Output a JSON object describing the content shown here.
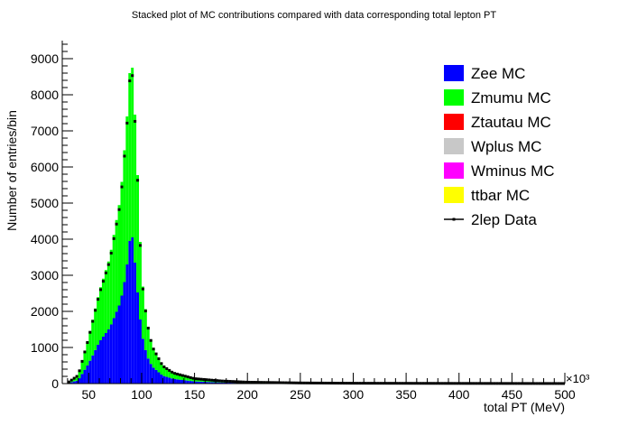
{
  "chart_data": {
    "type": "bar",
    "stacked": true,
    "title": "Stacked plot of MC contributions compared with data corresponding total lepton PT",
    "xlabel": "total PT (MeV)",
    "ylabel": "Number of entries/bin",
    "x_exponent_label": "×10³",
    "xlim": [
      25,
      500
    ],
    "ylim": [
      0,
      9500
    ],
    "bin_width": 2.5,
    "x_ticks": [
      50,
      100,
      150,
      200,
      250,
      300,
      350,
      400,
      450,
      500
    ],
    "y_ticks": [
      0,
      1000,
      2000,
      3000,
      4000,
      5000,
      6000,
      7000,
      8000,
      9000
    ],
    "legend_position": "top-right",
    "series": [
      {
        "name": "Zee MC",
        "color": "#0000ff",
        "style": "fill"
      },
      {
        "name": "Zmumu MC",
        "color": "#00ff00",
        "style": "fill"
      },
      {
        "name": "Ztautau MC",
        "color": "#ff0000",
        "style": "fill"
      },
      {
        "name": "Wplus MC",
        "color": "#c8c8c8",
        "style": "fill"
      },
      {
        "name": "Wminus MC",
        "color": "#ff00ff",
        "style": "fill"
      },
      {
        "name": "ttbar MC",
        "color": "#ffff00",
        "style": "fill"
      },
      {
        "name": "2lep Data",
        "color": "#000000",
        "style": "marker"
      }
    ],
    "key_points": [
      {
        "x": 30,
        "zee": 10,
        "total": 20
      },
      {
        "x": 40,
        "zee": 90,
        "total": 230
      },
      {
        "x": 50,
        "zee": 560,
        "total": 1300
      },
      {
        "x": 60,
        "zee": 1150,
        "total": 2550
      },
      {
        "x": 70,
        "zee": 1550,
        "total": 3500
      },
      {
        "x": 80,
        "zee": 2250,
        "total": 5150
      },
      {
        "x": 85,
        "zee": 3000,
        "total": 6900
      },
      {
        "x": 87.5,
        "zee": 3600,
        "total": 7900
      },
      {
        "x": 90,
        "zee": 4300,
        "total": 9300
      },
      {
        "x": 92.5,
        "zee": 3800,
        "total": 8200
      },
      {
        "x": 95,
        "zee": 2900,
        "total": 6700
      },
      {
        "x": 100,
        "zee": 1400,
        "total": 3000
      },
      {
        "x": 105,
        "zee": 770,
        "total": 1750
      },
      {
        "x": 110,
        "zee": 470,
        "total": 1050
      },
      {
        "x": 120,
        "zee": 220,
        "total": 500
      },
      {
        "x": 130,
        "zee": 130,
        "total": 300
      },
      {
        "x": 150,
        "zee": 60,
        "total": 140
      },
      {
        "x": 175,
        "zee": 30,
        "total": 75
      },
      {
        "x": 200,
        "zee": 15,
        "total": 40
      },
      {
        "x": 250,
        "zee": 6,
        "total": 18
      },
      {
        "x": 300,
        "zee": 3,
        "total": 10
      },
      {
        "x": 400,
        "zee": 1,
        "total": 5
      },
      {
        "x": 500,
        "zee": 0,
        "total": 2
      }
    ]
  }
}
